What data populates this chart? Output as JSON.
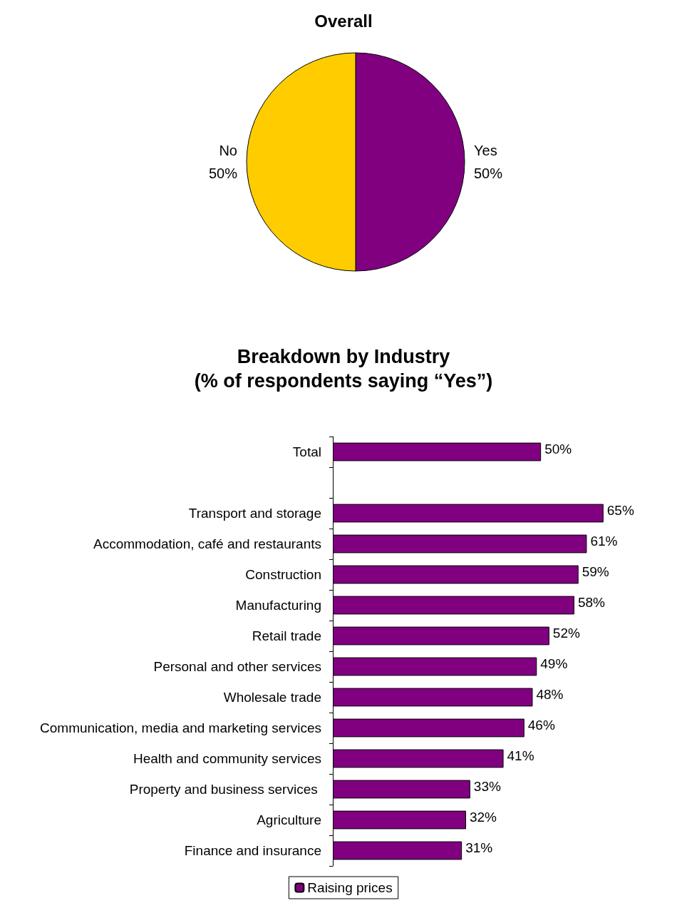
{
  "chart_data": [
    {
      "type": "pie",
      "title": "Overall",
      "categories": [
        "Yes",
        "No"
      ],
      "values": [
        50,
        50
      ],
      "colors": [
        "#800080",
        "#ffcc00"
      ],
      "value_labels": [
        "50%",
        "50%"
      ],
      "legend": false
    },
    {
      "type": "bar",
      "orientation": "horizontal",
      "title": "Breakdown by Industry\n(% of respondents saying “Yes”)",
      "categories": [
        "Total",
        null,
        "Transport and storage",
        "Accommodation, café and restaurants",
        "Construction",
        "Manufacturing",
        "Retail trade",
        "Personal and other services",
        "Wholesale trade",
        "Communication, media and marketing services",
        "Health and community services",
        "Property and business services ",
        "Agriculture",
        "Finance and insurance"
      ],
      "series": [
        {
          "name": "Raising prices",
          "color": "#800080",
          "values": [
            50,
            null,
            65,
            61,
            59,
            58,
            52,
            49,
            48,
            46,
            41,
            33,
            32,
            31
          ],
          "value_labels": [
            "50%",
            null,
            "65%",
            "61%",
            "59%",
            "58%",
            "52%",
            "49%",
            "48%",
            "46%",
            "41%",
            "33%",
            "32%",
            "31%"
          ]
        }
      ],
      "legend": "bottom",
      "grid": false,
      "tick_labels": "y"
    }
  ]
}
